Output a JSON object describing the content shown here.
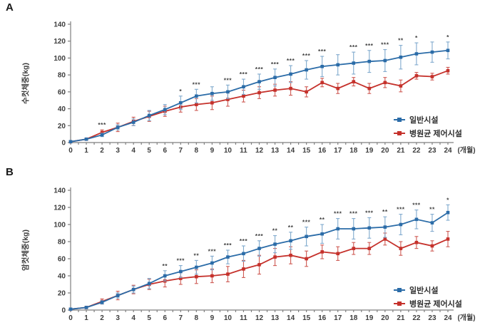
{
  "panels": [
    {
      "label": "A"
    },
    {
      "label": "B"
    }
  ],
  "colors": {
    "blue_series": "#2B6CA8",
    "blue_errorbar": "#7FA9CD",
    "red_series": "#C5312B",
    "red_errorbar": "#CE5A53",
    "axis": "#7f7f7f",
    "tick_text": "#3d3d3d",
    "significance_text": "#404040"
  },
  "chart_data": [
    {
      "type": "line",
      "panel": "A",
      "title": "",
      "ylabel": "수컷체중(kg)",
      "xlabel": "(개월)",
      "x": [
        0,
        1,
        2,
        3,
        4,
        5,
        6,
        7,
        8,
        9,
        10,
        11,
        12,
        13,
        14,
        15,
        16,
        17,
        18,
        19,
        20,
        21,
        22,
        23,
        24
      ],
      "ylim": [
        0,
        140
      ],
      "yticks": [
        0,
        20,
        40,
        60,
        80,
        100,
        120,
        140
      ],
      "grid": false,
      "legend_position": "lower right",
      "series": [
        {
          "name": "일반시설",
          "color": "#2B6CA8",
          "errorbar_color": "#7FA9CD",
          "values": [
            1,
            4,
            9,
            18,
            24,
            32,
            39,
            47,
            55,
            58,
            60,
            66,
            72,
            77,
            81,
            86,
            90,
            92,
            94,
            96,
            97,
            101,
            105,
            107,
            109
          ],
          "errors": [
            1,
            1,
            2,
            3,
            4,
            6,
            6,
            8,
            8,
            8,
            8,
            9,
            9,
            10,
            10,
            11,
            12,
            12,
            13,
            13,
            13,
            14,
            13,
            12,
            10
          ]
        },
        {
          "name": "병원균 제어시설",
          "color": "#C5312B",
          "errorbar_color": "#CE5A53",
          "values": [
            1,
            4,
            12,
            18,
            25,
            31,
            37,
            42,
            45,
            47,
            51,
            55,
            59,
            62,
            64,
            60,
            71,
            64,
            72,
            64,
            71,
            67,
            79,
            78,
            85
          ],
          "errors": [
            1,
            1,
            3,
            5,
            5,
            6,
            6,
            6,
            7,
            8,
            8,
            7,
            7,
            7,
            8,
            6,
            5,
            6,
            5,
            6,
            6,
            7,
            4,
            4,
            4
          ]
        }
      ],
      "significance": {
        "2": "***",
        "7": "*",
        "8": "***",
        "10": "***",
        "11": "***",
        "12": "***",
        "13": "***",
        "14": "***",
        "15": "***",
        "16": "***",
        "18": "***",
        "19": "***",
        "20": "***",
        "21": "**",
        "22": "*",
        "24": "*"
      }
    },
    {
      "type": "line",
      "panel": "B",
      "title": "",
      "ylabel": "암컷체중(kg)",
      "xlabel": "(개월)",
      "x": [
        0,
        1,
        2,
        3,
        4,
        5,
        6,
        7,
        8,
        9,
        10,
        11,
        12,
        13,
        14,
        15,
        16,
        17,
        18,
        19,
        20,
        21,
        22,
        23,
        24
      ],
      "ylim": [
        0,
        140
      ],
      "yticks": [
        0,
        20,
        40,
        60,
        80,
        100,
        120,
        140
      ],
      "grid": false,
      "legend_position": "lower right",
      "series": [
        {
          "name": "일반시설",
          "color": "#2B6CA8",
          "errorbar_color": "#7FA9CD",
          "values": [
            1,
            3,
            9,
            17,
            24,
            31,
            40,
            45,
            50,
            55,
            62,
            66,
            72,
            77,
            81,
            86,
            89,
            95,
            95,
            96,
            97,
            100,
            106,
            102,
            114
          ],
          "errors": [
            1,
            1,
            2,
            3,
            4,
            6,
            6,
            7,
            8,
            8,
            8,
            9,
            9,
            10,
            10,
            11,
            11,
            12,
            12,
            12,
            12,
            12,
            11,
            10,
            9
          ]
        },
        {
          "name": "병원균 제어시설",
          "color": "#C5312B",
          "errorbar_color": "#CE5A53",
          "values": [
            1,
            3,
            10,
            17,
            24,
            30,
            34,
            37,
            39,
            40,
            42,
            48,
            53,
            62,
            64,
            60,
            68,
            66,
            72,
            72,
            83,
            72,
            79,
            75,
            83
          ],
          "errors": [
            1,
            1,
            3,
            5,
            5,
            6,
            7,
            7,
            8,
            8,
            9,
            10,
            11,
            10,
            10,
            9,
            8,
            8,
            7,
            7,
            7,
            8,
            7,
            6,
            9
          ]
        }
      ],
      "significance": {
        "6": "**",
        "7": "***",
        "8": "**",
        "9": "***",
        "10": "***",
        "11": "***",
        "12": "***",
        "13": "**",
        "14": "**",
        "15": "***",
        "16": "**",
        "17": "***",
        "18": "***",
        "19": "***",
        "20": "**",
        "21": "***",
        "22": "***",
        "23": "**",
        "24": "*"
      }
    }
  ]
}
